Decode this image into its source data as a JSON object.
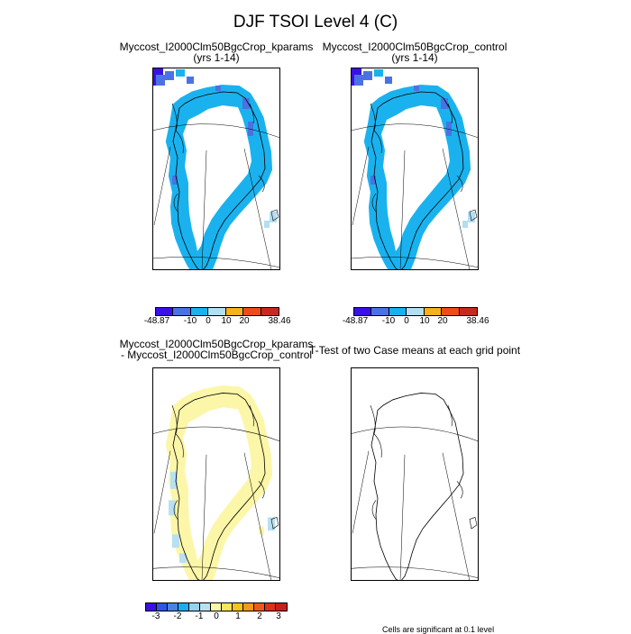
{
  "title": "DJF TSOI Level 4 (C)",
  "panels": [
    {
      "id": "kparams",
      "title_line1": "Myccost_I2000Clm50BgcCrop_kparams",
      "title_line2": "(yrs 1-14)"
    },
    {
      "id": "control",
      "title_line1": "Myccost_I2000Clm50BgcCrop_control",
      "title_line2": "(yrs 1-14)"
    },
    {
      "id": "difference",
      "title_line1": "Myccost_I2000Clm50BgcCrop_kparams",
      "title_line2": "- Myccost_I2000Clm50BgcCrop_control"
    },
    {
      "id": "ttest",
      "title_line1": "T-Test of two Case means at each grid point",
      "title_line2": ""
    }
  ],
  "colorbars": {
    "absolute": {
      "colors": [
        "#3a10e8",
        "#4a72e4",
        "#1ab2ee",
        "#b4def2",
        "#f6b21c",
        "#ee4c1a",
        "#c62a1e"
      ],
      "labels": [
        "-48.87",
        "-10",
        "0",
        "10",
        "20",
        "38.46"
      ]
    },
    "difference": {
      "colors": [
        "#3a10e8",
        "#2d55e6",
        "#4a82e4",
        "#1aaeee",
        "#96d2f0",
        "#b8e0f0",
        "#fcf6a8",
        "#fce45c",
        "#f8c41a",
        "#f49a1a",
        "#ee5a1a",
        "#e0301a",
        "#c81e1e"
      ],
      "labels": [
        "-3",
        "-2",
        "-1",
        "0",
        "1",
        "2",
        "3"
      ]
    }
  },
  "footnote": "Cells are significant at 0.1 level",
  "chart_data": [
    {
      "type": "heatmap",
      "title": "Myccost_I2000Clm50BgcCrop_kparams (yrs 1-14)",
      "region": "Greenland",
      "colorbar_levels": [
        -48.87,
        -10,
        0,
        10,
        20,
        38.46
      ],
      "dominant_range": [
        -10,
        0
      ]
    },
    {
      "type": "heatmap",
      "title": "Myccost_I2000Clm50BgcCrop_control (yrs 1-14)",
      "region": "Greenland",
      "colorbar_levels": [
        -48.87,
        -10,
        0,
        10,
        20,
        38.46
      ],
      "dominant_range": [
        -10,
        0
      ]
    },
    {
      "type": "heatmap",
      "title": "Myccost_I2000Clm50BgcCrop_kparams - Myccost_I2000Clm50BgcCrop_control",
      "region": "Greenland",
      "colorbar_levels": [
        -3,
        -2,
        -1,
        0,
        1,
        2,
        3
      ],
      "dominant_range": [
        0,
        0.5
      ]
    },
    {
      "type": "heatmap",
      "title": "T-Test of two Case means at each grid point",
      "region": "Greenland",
      "significant_cells": 0
    }
  ]
}
